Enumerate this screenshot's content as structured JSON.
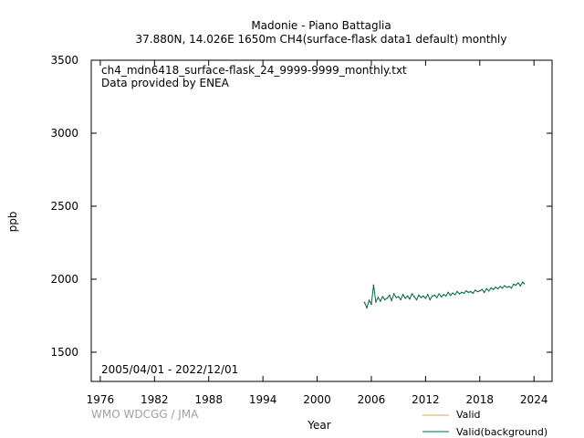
{
  "chart_data": {
    "type": "line",
    "title": "Madonie - Piano Battaglia",
    "subtitle": "37.880N, 14.026E 1650m    CH4(surface-flask data1 default) monthly",
    "xlabel": "Year",
    "ylabel": "ppb",
    "xlim": [
      1975,
      2026
    ],
    "ylim": [
      1300,
      3500
    ],
    "xticks": [
      1976,
      1982,
      1988,
      1994,
      2000,
      2006,
      2012,
      2018,
      2024
    ],
    "yticks": [
      1500,
      2000,
      2500,
      3000,
      3500
    ],
    "grid": false,
    "legend_position": "bottom-right",
    "annotations": {
      "filename": "ch4_mdn6418_surface-flask_24_9999-9999_monthly.txt",
      "provider": "Data provided by ENEA",
      "period": "2005/04/01 - 2022/12/01",
      "credit": "WMO WDCGG / JMA"
    },
    "colors": {
      "valid": "#f0a030",
      "background": "#006a3a"
    },
    "series": [
      {
        "name": "Valid",
        "color": "#f0a030",
        "x": [],
        "values": []
      },
      {
        "name": "Valid(background)",
        "color": "#006a3a",
        "x": [
          2005.25,
          2005.5,
          2005.75,
          2006.0,
          2006.25,
          2006.5,
          2006.75,
          2007.0,
          2007.25,
          2007.5,
          2007.75,
          2008.0,
          2008.25,
          2008.5,
          2008.75,
          2009.0,
          2009.25,
          2009.5,
          2009.75,
          2010.0,
          2010.25,
          2010.5,
          2010.75,
          2011.0,
          2011.25,
          2011.5,
          2011.75,
          2012.0,
          2012.25,
          2012.5,
          2012.75,
          2013.0,
          2013.25,
          2013.5,
          2013.75,
          2014.0,
          2014.25,
          2014.5,
          2014.75,
          2015.0,
          2015.25,
          2015.5,
          2015.75,
          2016.0,
          2016.25,
          2016.5,
          2016.75,
          2017.0,
          2017.25,
          2017.5,
          2017.75,
          2018.0,
          2018.25,
          2018.5,
          2018.75,
          2019.0,
          2019.25,
          2019.5,
          2019.75,
          2020.0,
          2020.25,
          2020.5,
          2020.75,
          2021.0,
          2021.25,
          2021.5,
          2021.75,
          2022.0,
          2022.25,
          2022.5,
          2022.75,
          2022.92
        ],
        "values": [
          1840,
          1805,
          1855,
          1830,
          1960,
          1845,
          1875,
          1850,
          1880,
          1860,
          1870,
          1890,
          1855,
          1900,
          1875,
          1880,
          1860,
          1895,
          1870,
          1885,
          1865,
          1900,
          1880,
          1860,
          1890,
          1875,
          1885,
          1870,
          1895,
          1860,
          1885,
          1890,
          1875,
          1900,
          1880,
          1895,
          1885,
          1910,
          1890,
          1905,
          1895,
          1915,
          1900,
          1910,
          1905,
          1920,
          1910,
          1915,
          1905,
          1925,
          1915,
          1920,
          1930,
          1910,
          1935,
          1920,
          1940,
          1930,
          1945,
          1935,
          1950,
          1940,
          1955,
          1945,
          1950,
          1940,
          1965,
          1960,
          1975,
          1955,
          1980,
          1970
        ]
      }
    ]
  }
}
